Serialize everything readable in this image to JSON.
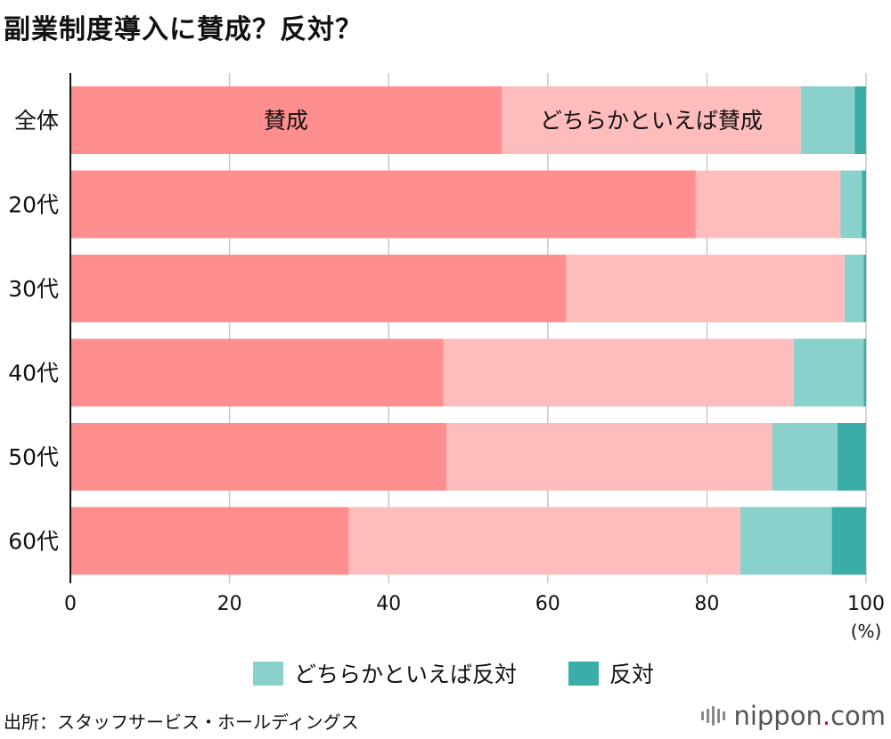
{
  "title": "副業制度導入に賛成？反対？",
  "chart_data": {
    "type": "bar",
    "orientation": "horizontal",
    "stacked": true,
    "categories": [
      "全体",
      "20代",
      "30代",
      "40代",
      "50代",
      "60代"
    ],
    "series": [
      {
        "name": "賛成",
        "color": "#ff8f8f",
        "values": [
          54.2,
          78.6,
          62.3,
          46.9,
          47.3,
          35.0
        ]
      },
      {
        "name": "どちらかといえば賛成",
        "color": "#ffbcbc",
        "values": [
          37.6,
          18.2,
          35.0,
          44.0,
          40.9,
          49.2
        ]
      },
      {
        "name": "どちらかといえば反対",
        "color": "#8ad0cb",
        "values": [
          6.8,
          2.7,
          2.4,
          8.8,
          8.2,
          11.5
        ]
      },
      {
        "name": "反対",
        "color": "#3aada8",
        "values": [
          1.4,
          0.5,
          0.3,
          0.3,
          3.6,
          4.3
        ]
      }
    ],
    "xlim": [
      0,
      100
    ],
    "xticks": [
      0,
      20,
      40,
      60,
      80,
      100
    ],
    "xlabel": "(%)",
    "grid": true,
    "inline_labels": [
      {
        "series": "賛成",
        "category": "全体",
        "text": "賛成"
      },
      {
        "series": "どちらかといえば賛成",
        "category": "全体",
        "text": "どちらかといえば賛成"
      }
    ],
    "legend": [
      {
        "label": "どちらかといえば反対",
        "color": "#8ad0cb"
      },
      {
        "label": "反対",
        "color": "#3aada8"
      }
    ]
  },
  "source": "出所：スタッフサービス・ホールディングス",
  "logo": {
    "name": "nippon",
    "dot": ".",
    "suffix": "com"
  }
}
